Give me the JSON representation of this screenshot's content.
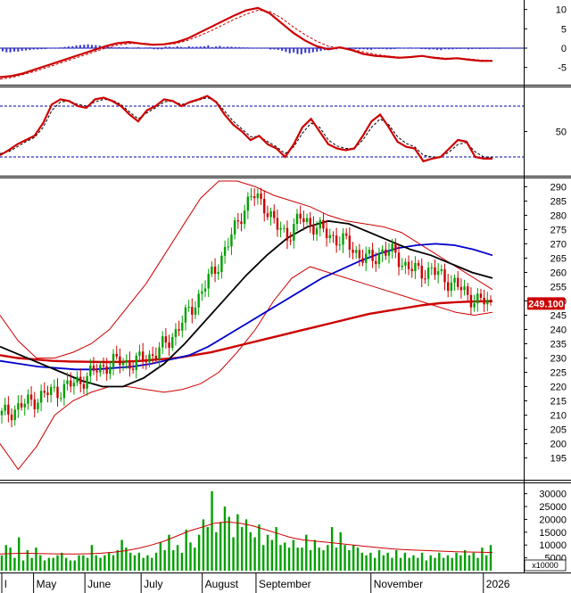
{
  "colors": {
    "up": "#00a000",
    "down": "#cc0000",
    "ma_long": "#cc0000",
    "ma_mid": "#0000cc",
    "ma_black": "#000000",
    "bollinger": "#cc0000",
    "macd_hist": "#3333cc",
    "volume": "#00a000",
    "price_badge": "#cc0000"
  },
  "current_price_label": "249.100",
  "volume_multiplier_label": "x10000",
  "chart_data": [
    {
      "type": "line",
      "panel": "macd",
      "yticks": [
        "10",
        "5",
        "0",
        "-5"
      ],
      "tick_values": [
        10,
        5,
        0,
        -5
      ],
      "ylim": [
        -9,
        12
      ],
      "macd": [
        -7.5,
        -7.2,
        -6.5,
        -5.5,
        -4.5,
        -3.5,
        -2.5,
        -1.5,
        -0.5,
        0.5,
        1.3,
        1.6,
        1.2,
        0.9,
        1.0,
        1.5,
        2.5,
        4.0,
        5.5,
        7.0,
        8.5,
        9.8,
        10.4,
        9.0,
        6.5,
        4.0,
        2.0,
        0.5,
        -0.3,
        0.2,
        -0.5,
        -1.5,
        -2.0,
        -2.2,
        -2.5,
        -2.3,
        -2.0,
        -2.5,
        -2.8,
        -2.6,
        -3.0,
        -3.3,
        -3.3
      ],
      "signal": [
        -8.0,
        -7.6,
        -6.8,
        -6.0,
        -5.0,
        -4.0,
        -3.0,
        -2.0,
        -1.0,
        0.0,
        0.8,
        1.2,
        1.2,
        1.0,
        0.9,
        1.2,
        2.0,
        3.2,
        4.5,
        6.0,
        7.5,
        8.8,
        9.8,
        9.5,
        7.8,
        5.5,
        3.5,
        1.8,
        0.5,
        0.0,
        -0.3,
        -1.0,
        -1.6,
        -2.0,
        -2.3,
        -2.3,
        -2.1,
        -2.3,
        -2.6,
        -2.6,
        -2.8,
        -3.1,
        -3.2
      ],
      "histogram": [
        -1.0,
        -0.8,
        -0.5,
        -0.3,
        0.2,
        0.5,
        0.8,
        1.0,
        0.8,
        0.5,
        0.5,
        0.3,
        0.2,
        -0.2,
        0.4,
        0.5,
        0.8,
        1.0,
        0.6,
        0.4,
        0.3,
        0.2,
        0.1,
        -0.5,
        -1.3,
        -1.5,
        -1.2,
        -0.8,
        -0.5,
        0.2,
        -0.2,
        -0.3,
        -0.1,
        -0.2,
        0.2,
        0.3,
        -0.3,
        -0.4,
        -0.2,
        -0.1,
        -0.2,
        -0.2,
        -0.1
      ]
    },
    {
      "type": "line",
      "panel": "stochastic",
      "yticks": [
        "50"
      ],
      "tick_values": [
        50
      ],
      "ylim": [
        0,
        100
      ],
      "ref_levels": [
        80,
        20
      ],
      "k": [
        22,
        28,
        35,
        40,
        45,
        60,
        82,
        88,
        86,
        80,
        78,
        88,
        90,
        86,
        80,
        70,
        62,
        75,
        80,
        88,
        86,
        80,
        85,
        88,
        92,
        85,
        70,
        58,
        50,
        40,
        45,
        35,
        30,
        20,
        35,
        55,
        65,
        50,
        35,
        30,
        28,
        30,
        45,
        62,
        70,
        55,
        38,
        32,
        30,
        15,
        18,
        20,
        30,
        40,
        38,
        20,
        18,
        18
      ],
      "d": [
        24,
        26,
        32,
        38,
        43,
        55,
        75,
        85,
        86,
        82,
        80,
        85,
        88,
        87,
        82,
        73,
        65,
        72,
        78,
        85,
        86,
        82,
        84,
        87,
        90,
        86,
        74,
        62,
        53,
        44,
        44,
        38,
        32,
        24,
        32,
        48,
        60,
        55,
        40,
        33,
        30,
        30,
        40,
        55,
        65,
        58,
        44,
        36,
        32,
        22,
        20,
        20,
        26,
        35,
        37,
        26,
        20,
        19
      ]
    },
    {
      "type": "line",
      "panel": "price",
      "yticks": [
        "290",
        "285",
        "280",
        "275",
        "270",
        "265",
        "260",
        "255",
        "250",
        "245",
        "240",
        "235",
        "230",
        "225",
        "220",
        "215",
        "210",
        "205",
        "200",
        "195"
      ],
      "tick_values": [
        290,
        285,
        280,
        275,
        270,
        265,
        260,
        255,
        250,
        245,
        240,
        235,
        230,
        225,
        220,
        215,
        210,
        205,
        200,
        195
      ],
      "ylim": [
        188,
        292
      ],
      "close": [
        210,
        212,
        214,
        216,
        218,
        219,
        221,
        223,
        226,
        228,
        229,
        228,
        230,
        232,
        236,
        242,
        248,
        255,
        262,
        270,
        280,
        287,
        284,
        276,
        273,
        279,
        277,
        274,
        272,
        270,
        266,
        264,
        268,
        266,
        262,
        260,
        261,
        258,
        256,
        252,
        250,
        249.1
      ],
      "sma_red_long": [
        231,
        230,
        229.5,
        229,
        228.8,
        228.7,
        228.6,
        228.7,
        229,
        229.5,
        230,
        231,
        232,
        233.5,
        235,
        236.5,
        238,
        239.5,
        241,
        242.5,
        244,
        245.5,
        246.5,
        247.5,
        248.5,
        249.2,
        249.6,
        249.8,
        249.9
      ],
      "sma_blue": [
        229,
        228,
        227,
        226.5,
        226,
        226,
        226.5,
        227,
        228,
        229.5,
        231,
        234,
        238,
        242,
        246,
        250,
        254,
        258,
        261,
        264,
        266.5,
        268.5,
        269.5,
        270,
        269.5,
        268,
        266
      ],
      "sma_black": [
        234,
        231,
        228,
        225,
        222,
        220,
        220,
        223,
        228,
        235,
        243,
        251,
        259,
        266,
        272,
        276,
        278,
        277,
        274,
        271,
        268,
        266,
        263,
        260,
        258
      ],
      "bb_upper": [
        245,
        236,
        230,
        230,
        232,
        235,
        240,
        248,
        256,
        266,
        276,
        286,
        292,
        292,
        290,
        287,
        285,
        283,
        280,
        278,
        277,
        276,
        274,
        270,
        266,
        262,
        258,
        254
      ],
      "bb_lower": [
        200,
        191,
        199,
        210,
        215,
        218,
        220,
        220,
        219,
        218,
        219,
        221,
        225,
        232,
        240,
        250,
        258,
        262,
        260,
        258,
        256,
        254,
        252,
        250,
        248,
        246,
        245,
        246
      ]
    },
    {
      "type": "bar",
      "panel": "volume",
      "yticks": [
        "30000",
        "25000",
        "20000",
        "15000",
        "10000",
        "5000"
      ],
      "tick_values": [
        30000,
        25000,
        20000,
        15000,
        10000,
        5000
      ],
      "ylim": [
        0,
        33000
      ],
      "values": [
        6000,
        10000,
        9000,
        5000,
        13000,
        4000,
        8000,
        5000,
        9000,
        6000,
        4000,
        5000,
        5000,
        6000,
        7000,
        5000,
        4000,
        4000,
        6000,
        6000,
        5000,
        10000,
        6000,
        5000,
        6000,
        7000,
        6000,
        8000,
        12000,
        9000,
        7000,
        6000,
        7000,
        5000,
        6000,
        5000,
        7000,
        11000,
        8000,
        14000,
        8000,
        10000,
        7000,
        16000,
        11000,
        9000,
        14000,
        20000,
        17000,
        31000,
        15000,
        19000,
        25000,
        21000,
        13000,
        22000,
        17000,
        20000,
        15000,
        13000,
        18000,
        10000,
        14000,
        12000,
        17000,
        10000,
        11000,
        9000,
        12000,
        9000,
        9000,
        14000,
        8000,
        12000,
        9000,
        8000,
        10000,
        17000,
        9000,
        15000,
        10000,
        8000,
        10000,
        9000,
        7000,
        6000,
        7000,
        5000,
        8000,
        6000,
        7000,
        5000,
        8000,
        5000,
        7000,
        5000,
        6000,
        5000,
        7000,
        4000,
        6000,
        5000,
        7000,
        5000,
        6000,
        5000,
        7000,
        6000,
        8000,
        6000,
        7000,
        5000,
        9000,
        6000,
        10000
      ],
      "ma": [
        6500,
        6700,
        6800,
        6700,
        6600,
        6500,
        6500,
        6600,
        6800,
        7200,
        7800,
        8800,
        10000,
        11500,
        13500,
        15500,
        17000,
        18500,
        19000,
        18500,
        17500,
        16000,
        14500,
        13000,
        12000,
        11500,
        11000,
        10500,
        10000,
        9500,
        9000,
        8500,
        8200,
        8000,
        7800,
        7600,
        7400,
        7300,
        7200,
        7100
      ]
    }
  ],
  "x_axis": {
    "labels": [
      "l",
      "May",
      "June",
      "July",
      "August",
      "September",
      "November",
      "2026"
    ]
  }
}
